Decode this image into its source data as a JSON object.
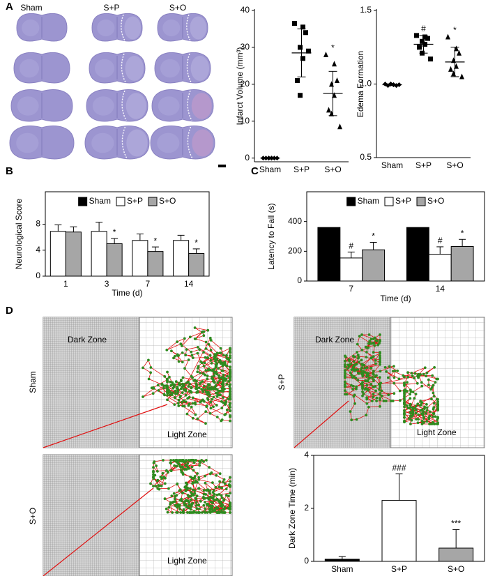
{
  "panel_labels": [
    "A",
    "B",
    "C",
    "D"
  ],
  "brain_images": {
    "columns": [
      "Sham",
      "S+P",
      "S+O"
    ]
  },
  "tracking": [
    {
      "group": "Sham",
      "dark_zone": "Dark Zone",
      "light_zone": "Light Zone"
    },
    {
      "group": "S+P",
      "dark_zone": "Dark Zone",
      "light_zone": "Light Zone"
    },
    {
      "group": "S+O",
      "light_zone": "Light Zone"
    }
  ],
  "chart_data": [
    {
      "type": "dotplot",
      "y_label": "Infarct Volume (mm³)",
      "categories": [
        "Sham",
        "S+P",
        "S+O"
      ],
      "markers": [
        "diamond",
        "square",
        "triangle"
      ],
      "color": "#000000",
      "points": [
        [
          0,
          0,
          0,
          0,
          0,
          0,
          0,
          0
        ],
        [
          36.5,
          35.5,
          34,
          30,
          27,
          21,
          17,
          29
        ],
        [
          28,
          25.5,
          21,
          20,
          17,
          13,
          12,
          8.5
        ]
      ],
      "means": [
        0,
        28.5,
        17.5
      ],
      "errors": [
        0,
        6.5,
        6
      ],
      "annotations": [
        null,
        null,
        "*"
      ],
      "ylim": [
        -1,
        40
      ],
      "yticks": [
        0,
        10,
        20,
        30,
        40
      ],
      "frame": "axes"
    },
    {
      "type": "dotplot",
      "y_label": "Edema Formation",
      "categories": [
        "Sham",
        "S+P",
        "S+O"
      ],
      "markers": [
        "diamond",
        "square",
        "triangle"
      ],
      "color": "#000000",
      "points": [
        [
          1.0,
          0.995,
          0.99,
          1.0,
          0.995,
          0.99,
          1.0,
          0.995
        ],
        [
          1.33,
          1.32,
          1.31,
          1.29,
          1.27,
          1.25,
          1.21,
          1.17
        ],
        [
          1.32,
          1.24,
          1.21,
          1.16,
          1.12,
          1.1,
          1.07,
          1.05
        ]
      ],
      "means": [
        0.995,
        1.27,
        1.15
      ],
      "errors": [
        0.005,
        0.06,
        0.1
      ],
      "annotations": [
        null,
        "#",
        "*"
      ],
      "ylim": [
        0.5,
        1.5
      ],
      "yticks": [
        0.5,
        {
          "value": 1,
          "label": "1.0"
        },
        1.5
      ],
      "frame": "axes"
    },
    {
      "type": "bar",
      "y_label": "Neurological Score",
      "x_label": "Time (d)",
      "categories": [
        "1",
        "3",
        "7",
        "14"
      ],
      "series": [
        {
          "name": "Sham",
          "color": "#000000",
          "values": [
            null,
            null,
            null,
            null
          ]
        },
        {
          "name": "S+P",
          "color": "#ffffff",
          "values": [
            6.9,
            6.9,
            5.5,
            5.5
          ],
          "errors": [
            1.0,
            1.4,
            1.0,
            0.8
          ]
        },
        {
          "name": "S+O",
          "color": "#a6a6a6",
          "values": [
            6.8,
            5.0,
            3.8,
            3.5
          ],
          "errors": [
            0.8,
            0.8,
            0.7,
            0.7
          ],
          "annotations": [
            null,
            "*",
            "*",
            "*"
          ]
        }
      ],
      "ylim": [
        0,
        13
      ],
      "yticks": [
        0,
        4,
        8
      ],
      "legend": "top",
      "frame": "box"
    },
    {
      "type": "bar",
      "y_label": "Latency to Fall (s)",
      "x_label": "Time (d)",
      "categories": [
        "7",
        "14"
      ],
      "series": [
        {
          "name": "Sham",
          "color": "#000000",
          "values": [
            360,
            360
          ]
        },
        {
          "name": "S+P",
          "color": "#ffffff",
          "values": [
            155,
            180
          ],
          "errors": [
            40,
            50
          ],
          "annotations": [
            "#",
            "#"
          ]
        },
        {
          "name": "S+O",
          "color": "#a6a6a6",
          "values": [
            210,
            232
          ],
          "errors": [
            50,
            48
          ],
          "annotations": [
            "*",
            "*"
          ]
        }
      ],
      "ylim": [
        0,
        600
      ],
      "yticks": [
        0,
        200,
        400
      ],
      "legend": "top",
      "frame": "box"
    },
    {
      "type": "bar",
      "y_label": "Dark Zone Time (min)",
      "categories": [
        "Sham",
        "S+P",
        "S+O"
      ],
      "values": [
        0.08,
        2.3,
        0.5
      ],
      "errors": [
        0.1,
        1.0,
        0.7
      ],
      "colors": [
        "#000000",
        "#ffffff",
        "#a6a6a6"
      ],
      "annotations": [
        null,
        "###",
        "***"
      ],
      "ylim": [
        0,
        4
      ],
      "yticks": [
        0,
        2,
        4
      ],
      "frame": "box"
    }
  ]
}
